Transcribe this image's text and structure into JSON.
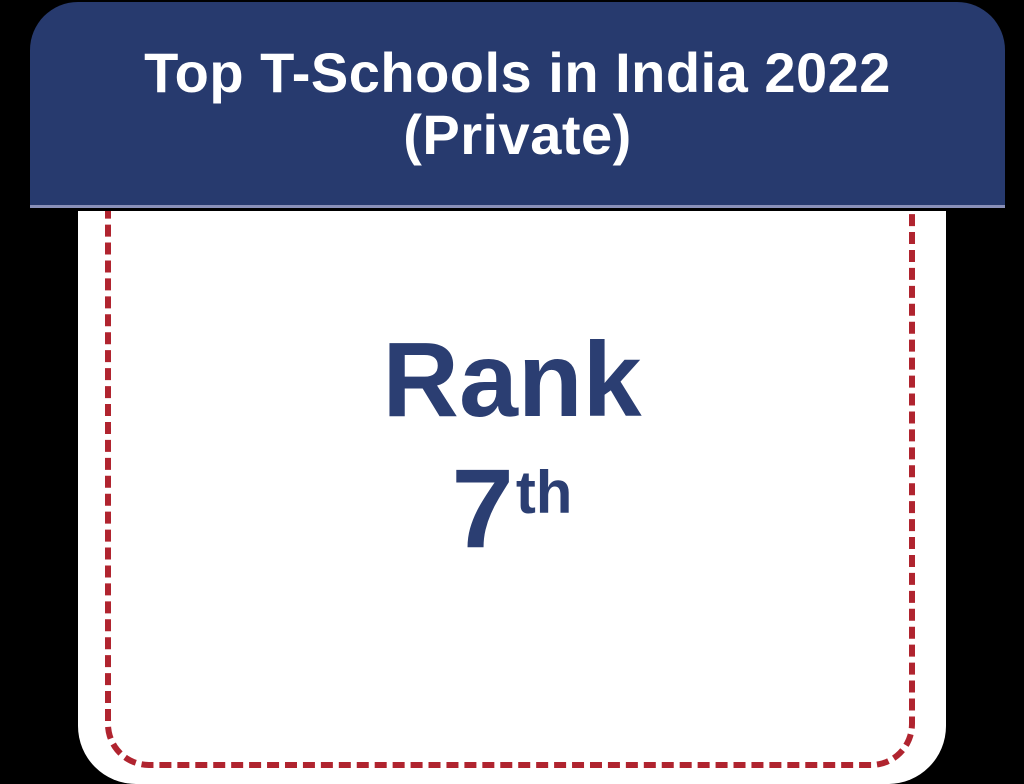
{
  "header": {
    "title_line1": "Top T-Schools in India 2022",
    "title_line2": "(Private)"
  },
  "body": {
    "rank_label": "Rank",
    "rank_value": "7",
    "rank_suffix": "th"
  },
  "colors": {
    "page-bg": "#000000",
    "header-bg": "#273a6e",
    "header-underline": "#8a90b8",
    "title-text": "#ffffff",
    "rank-text": "#2b3e72",
    "dash-red": "#b0242f"
  }
}
